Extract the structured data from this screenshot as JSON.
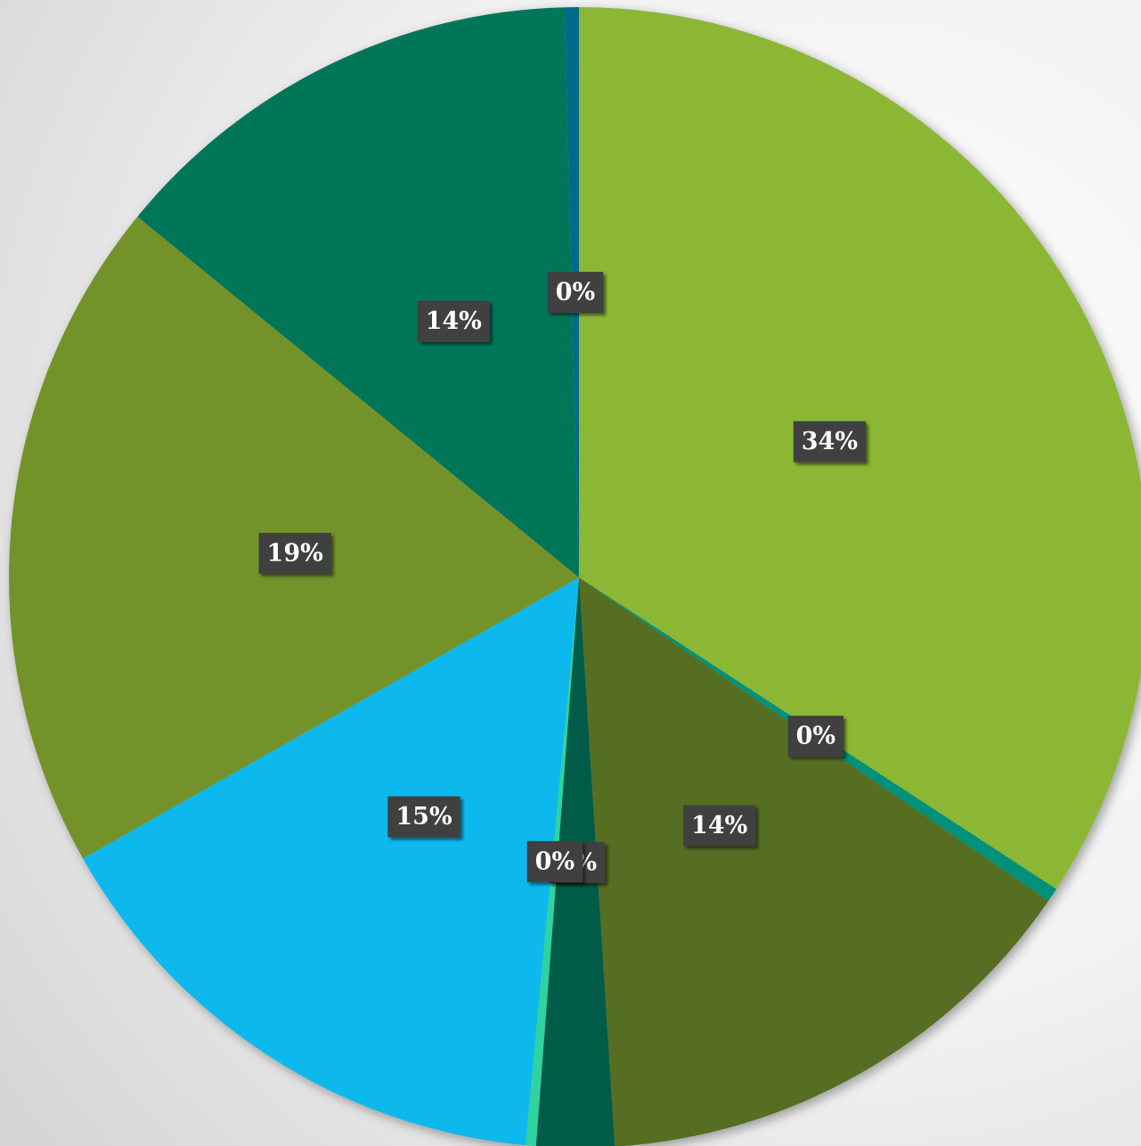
{
  "chart_data": {
    "type": "pie",
    "values": [
      34.2,
      0.4,
      14.4,
      2.2,
      0.3,
      15.3,
      19.1,
      13.7,
      0.4
    ],
    "value_labels": [
      "34%",
      "0%",
      "14%",
      "2%",
      "0%",
      "15%",
      "19%",
      "14%",
      "0%"
    ],
    "colors": [
      "#8bb735",
      "#00917a",
      "#556e20",
      "#005c48",
      "#2ed3a0",
      "#0bb8ec",
      "#739329",
      "#007659",
      "#006a8a"
    ]
  }
}
